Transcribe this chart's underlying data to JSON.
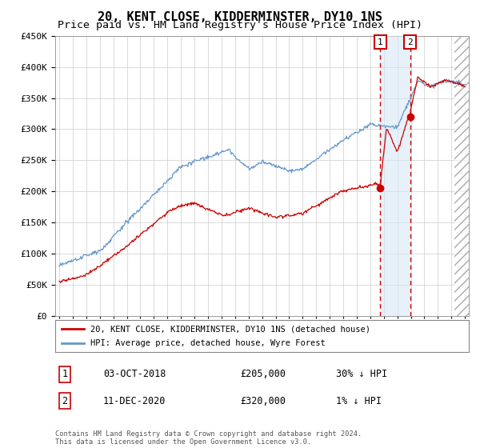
{
  "title": "20, KENT CLOSE, KIDDERMINSTER, DY10 1NS",
  "subtitle": "Price paid vs. HM Land Registry's House Price Index (HPI)",
  "ylim": [
    0,
    450000
  ],
  "yticks": [
    0,
    50000,
    100000,
    150000,
    200000,
    250000,
    300000,
    350000,
    400000,
    450000
  ],
  "ytick_labels": [
    "£0",
    "£50K",
    "£100K",
    "£150K",
    "£200K",
    "£250K",
    "£300K",
    "£350K",
    "£400K",
    "£450K"
  ],
  "hpi_color": "#6699cc",
  "price_color": "#cc0000",
  "sale1_date": 2018.75,
  "sale1_price": 205000,
  "sale2_date": 2020.95,
  "sale2_price": 320000,
  "legend_entry1": "20, KENT CLOSE, KIDDERMINSTER, DY10 1NS (detached house)",
  "legend_entry2": "HPI: Average price, detached house, Wyre Forest",
  "note1_num": "1",
  "note1_date": "03-OCT-2018",
  "note1_price": "£205,000",
  "note1_hpi": "30% ↓ HPI",
  "note2_num": "2",
  "note2_date": "11-DEC-2020",
  "note2_price": "£320,000",
  "note2_hpi": "1% ↓ HPI",
  "copyright": "Contains HM Land Registry data © Crown copyright and database right 2024.\nThis data is licensed under the Open Government Licence v3.0.",
  "shade_color": "#d8e8f8",
  "grid_color": "#cccccc",
  "bg_color": "#ffffff",
  "title_fontsize": 11,
  "subtitle_fontsize": 9.5,
  "hatch_start": 2024.2,
  "xmin": 1994.7,
  "xmax": 2025.3
}
